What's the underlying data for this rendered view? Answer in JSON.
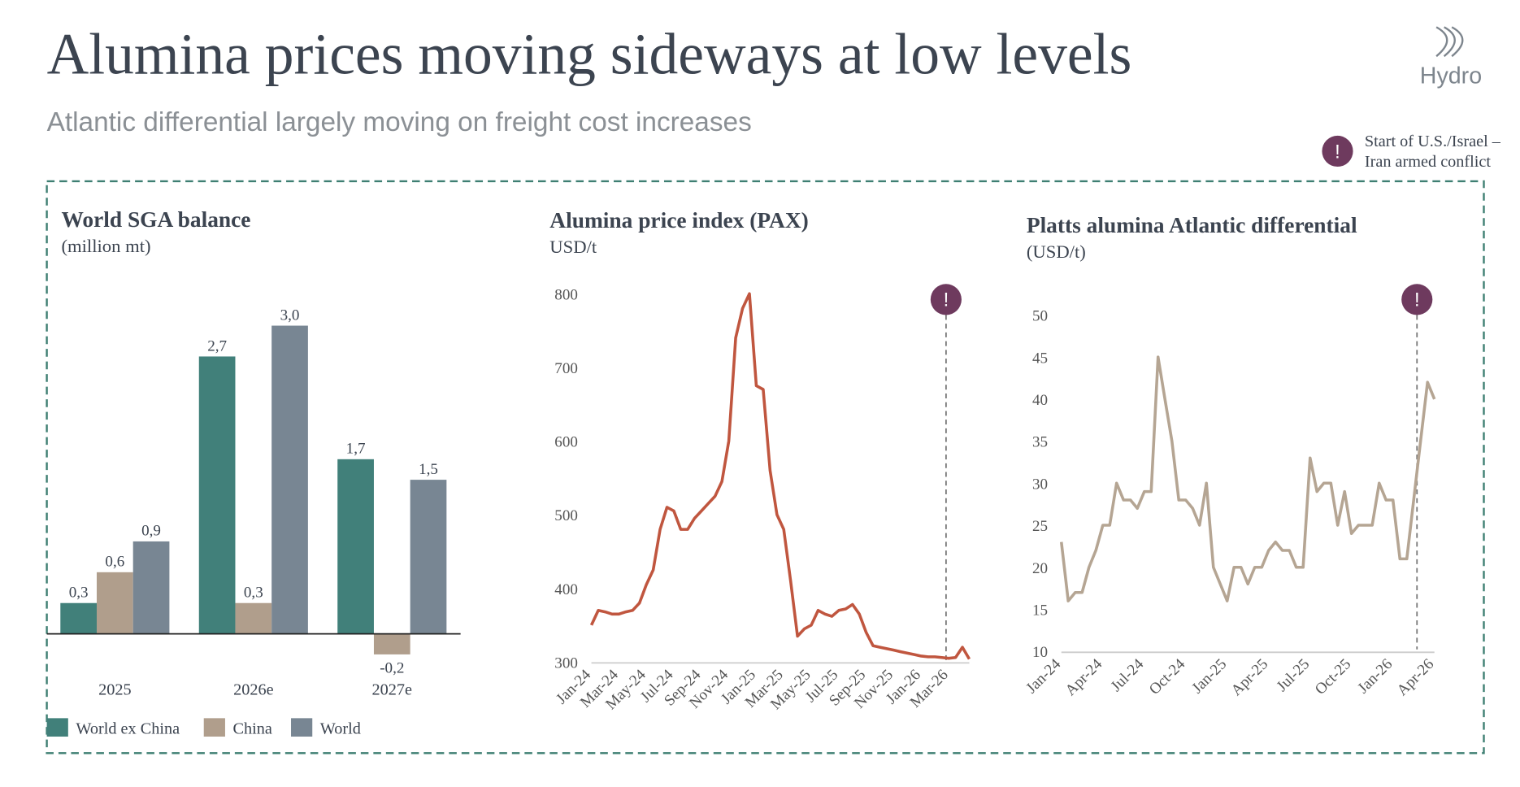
{
  "title": "Alumina prices moving sideways at low levels",
  "subtitle": "Atlantic differential largely moving on freight cost increases",
  "logo": "Hydro",
  "annotation_marker": "!",
  "annotation": [
    "Start of U.S./Israel –",
    "Iran armed conflict"
  ],
  "chart_data": [
    {
      "type": "bar",
      "title": "World SGA balance",
      "subtitle": "(million mt)",
      "categories": [
        "2025",
        "2026e",
        "2027e"
      ],
      "series": [
        {
          "name": "World ex China",
          "color": "#41807a",
          "values": [
            0.3,
            2.7,
            1.7
          ],
          "value_labels": [
            "0,3",
            "2,7",
            "1,7"
          ]
        },
        {
          "name": "China",
          "color": "#b09e8c",
          "values": [
            0.6,
            0.3,
            -0.2
          ],
          "value_labels": [
            "0,6",
            "0,3",
            "-0,2"
          ]
        },
        {
          "name": "World",
          "color": "#788693",
          "values": [
            0.9,
            3.0,
            1.5
          ],
          "value_labels": [
            "0,9",
            "3,0",
            "1,5"
          ]
        }
      ]
    },
    {
      "type": "line",
      "title": "Alumina price index (PAX)",
      "subtitle": "USD/t",
      "color": "#c0563f",
      "categories": [
        "Jan-24",
        null,
        null,
        null,
        "Mar-24",
        null,
        null,
        null,
        "May-24",
        null,
        null,
        null,
        "Jul-24",
        null,
        null,
        null,
        "Sep-24",
        null,
        null,
        null,
        "Nov-24",
        null,
        null,
        null,
        "Jan-25",
        null,
        null,
        null,
        "Mar-25",
        null,
        null,
        null,
        "May-25",
        null,
        null,
        null,
        "Jul-25",
        null,
        null,
        null,
        "Sep-25",
        null,
        null,
        null,
        "Nov-25",
        null,
        null,
        null,
        "Jan-26",
        null,
        null,
        null,
        "Mar-26",
        null,
        null,
        null
      ],
      "values": [
        350,
        370,
        368,
        365,
        365,
        368,
        370,
        380,
        405,
        425,
        480,
        510,
        505,
        480,
        480,
        495,
        505,
        515,
        525,
        545,
        600,
        740,
        780,
        800,
        675,
        670,
        560,
        500,
        480,
        410,
        335,
        345,
        350,
        370,
        365,
        362,
        370,
        372,
        378,
        365,
        340,
        322,
        320,
        318,
        316,
        314,
        312,
        310,
        308,
        307,
        307,
        306,
        305,
        306,
        320,
        304
      ],
      "ylim": [
        300,
        800
      ],
      "yticks": [
        300,
        400,
        500,
        600,
        700,
        800
      ]
    },
    {
      "type": "line",
      "title": "Platts alumina Atlantic differential",
      "subtitle": "(USD/t)",
      "color": "#b5a593",
      "categories": [
        "Jan-24",
        null,
        null,
        null,
        null,
        null,
        "Apr-24",
        null,
        null,
        null,
        null,
        null,
        "Jul-24",
        null,
        null,
        null,
        null,
        null,
        "Oct-24",
        null,
        null,
        null,
        null,
        null,
        "Jan-25",
        null,
        null,
        null,
        null,
        null,
        "Apr-25",
        null,
        null,
        null,
        null,
        null,
        "Jul-25",
        null,
        null,
        null,
        null,
        null,
        "Oct-25",
        null,
        null,
        null,
        null,
        null,
        "Jan-26",
        null,
        null,
        null,
        null,
        null,
        "Apr-26"
      ],
      "values": [
        23,
        16,
        17,
        17,
        20,
        22,
        25,
        25,
        30,
        28,
        28,
        27,
        29,
        29,
        45,
        40,
        35,
        28,
        28,
        27,
        25,
        30,
        20,
        18,
        16,
        20,
        20,
        18,
        20,
        20,
        22,
        23,
        22,
        22,
        20,
        20,
        33,
        29,
        30,
        30,
        25,
        29,
        24,
        25,
        25,
        25,
        30,
        28,
        28,
        21,
        21,
        28,
        35,
        42,
        40
      ],
      "ylim": [
        10,
        50
      ],
      "yticks": [
        10,
        15,
        20,
        25,
        30,
        35,
        40,
        45,
        50
      ]
    }
  ]
}
